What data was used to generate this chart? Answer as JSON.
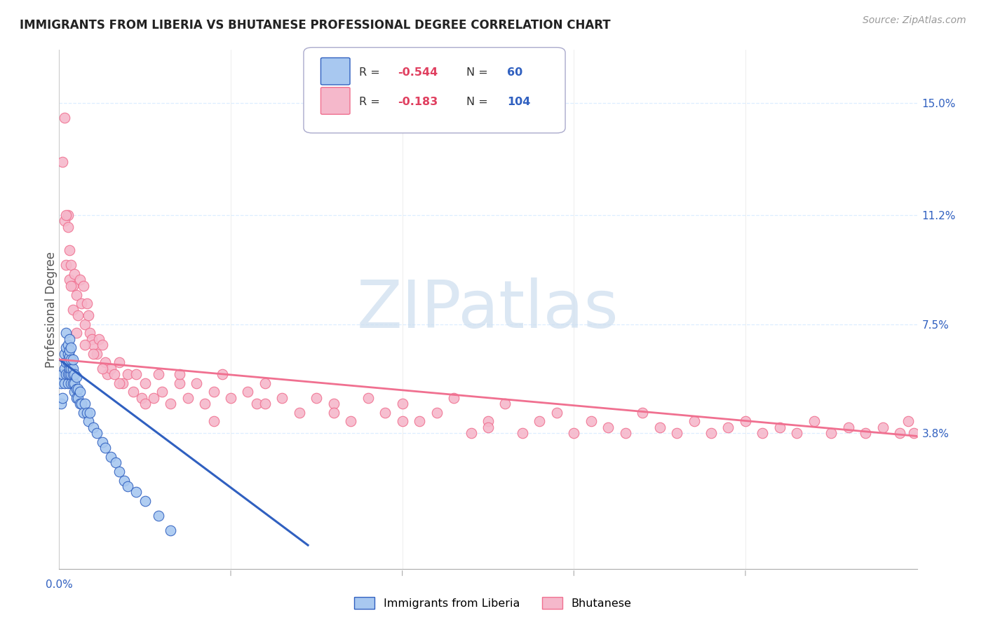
{
  "title": "IMMIGRANTS FROM LIBERIA VS BHUTANESE PROFESSIONAL DEGREE CORRELATION CHART",
  "source": "Source: ZipAtlas.com",
  "ylabel": "Professional Degree",
  "right_yticks": [
    "15.0%",
    "11.2%",
    "7.5%",
    "3.8%"
  ],
  "right_ytick_vals": [
    0.15,
    0.112,
    0.075,
    0.038
  ],
  "xmin": 0.0,
  "xmax": 0.5,
  "ymin": -0.008,
  "ymax": 0.168,
  "color_liberia": "#a8c8f0",
  "color_bhutanese": "#f5b8cb",
  "color_liberia_line": "#3060c0",
  "color_bhutanese_line": "#f07090",
  "watermark_color": "#ccddef",
  "grid_color": "#ddeeff",
  "liberia_x": [
    0.001,
    0.001,
    0.002,
    0.002,
    0.003,
    0.003,
    0.003,
    0.004,
    0.004,
    0.004,
    0.004,
    0.005,
    0.005,
    0.005,
    0.005,
    0.005,
    0.006,
    0.006,
    0.006,
    0.006,
    0.006,
    0.006,
    0.007,
    0.007,
    0.007,
    0.007,
    0.007,
    0.008,
    0.008,
    0.008,
    0.008,
    0.009,
    0.009,
    0.009,
    0.01,
    0.01,
    0.01,
    0.011,
    0.011,
    0.012,
    0.012,
    0.013,
    0.014,
    0.015,
    0.016,
    0.017,
    0.018,
    0.02,
    0.022,
    0.025,
    0.027,
    0.03,
    0.033,
    0.035,
    0.038,
    0.04,
    0.045,
    0.05,
    0.058,
    0.065
  ],
  "liberia_y": [
    0.048,
    0.055,
    0.05,
    0.058,
    0.055,
    0.06,
    0.065,
    0.058,
    0.062,
    0.067,
    0.072,
    0.055,
    0.058,
    0.062,
    0.065,
    0.068,
    0.058,
    0.06,
    0.062,
    0.064,
    0.066,
    0.07,
    0.055,
    0.058,
    0.06,
    0.063,
    0.067,
    0.055,
    0.058,
    0.06,
    0.063,
    0.052,
    0.055,
    0.058,
    0.05,
    0.053,
    0.057,
    0.05,
    0.053,
    0.048,
    0.052,
    0.048,
    0.045,
    0.048,
    0.045,
    0.042,
    0.045,
    0.04,
    0.038,
    0.035,
    0.033,
    0.03,
    0.028,
    0.025,
    0.022,
    0.02,
    0.018,
    0.015,
    0.01,
    0.005
  ],
  "bhutanese_x": [
    0.002,
    0.003,
    0.003,
    0.004,
    0.005,
    0.005,
    0.006,
    0.006,
    0.007,
    0.008,
    0.008,
    0.009,
    0.01,
    0.011,
    0.012,
    0.013,
    0.014,
    0.015,
    0.016,
    0.017,
    0.018,
    0.019,
    0.02,
    0.022,
    0.023,
    0.025,
    0.027,
    0.028,
    0.03,
    0.032,
    0.035,
    0.037,
    0.04,
    0.043,
    0.045,
    0.048,
    0.05,
    0.055,
    0.058,
    0.06,
    0.065,
    0.07,
    0.075,
    0.08,
    0.085,
    0.09,
    0.095,
    0.1,
    0.11,
    0.115,
    0.12,
    0.13,
    0.14,
    0.15,
    0.16,
    0.17,
    0.18,
    0.19,
    0.2,
    0.21,
    0.22,
    0.23,
    0.24,
    0.25,
    0.26,
    0.27,
    0.28,
    0.29,
    0.3,
    0.31,
    0.32,
    0.33,
    0.34,
    0.35,
    0.36,
    0.37,
    0.38,
    0.39,
    0.4,
    0.41,
    0.42,
    0.43,
    0.44,
    0.45,
    0.46,
    0.47,
    0.48,
    0.49,
    0.495,
    0.498,
    0.004,
    0.007,
    0.01,
    0.015,
    0.02,
    0.025,
    0.035,
    0.05,
    0.07,
    0.09,
    0.12,
    0.16,
    0.2,
    0.25
  ],
  "bhutanese_y": [
    0.13,
    0.145,
    0.11,
    0.095,
    0.112,
    0.108,
    0.1,
    0.09,
    0.095,
    0.088,
    0.08,
    0.092,
    0.085,
    0.078,
    0.09,
    0.082,
    0.088,
    0.075,
    0.082,
    0.078,
    0.072,
    0.07,
    0.068,
    0.065,
    0.07,
    0.068,
    0.062,
    0.058,
    0.06,
    0.058,
    0.062,
    0.055,
    0.058,
    0.052,
    0.058,
    0.05,
    0.055,
    0.05,
    0.058,
    0.052,
    0.048,
    0.055,
    0.05,
    0.055,
    0.048,
    0.042,
    0.058,
    0.05,
    0.052,
    0.048,
    0.055,
    0.05,
    0.045,
    0.05,
    0.048,
    0.042,
    0.05,
    0.045,
    0.048,
    0.042,
    0.045,
    0.05,
    0.038,
    0.042,
    0.048,
    0.038,
    0.042,
    0.045,
    0.038,
    0.042,
    0.04,
    0.038,
    0.045,
    0.04,
    0.038,
    0.042,
    0.038,
    0.04,
    0.042,
    0.038,
    0.04,
    0.038,
    0.042,
    0.038,
    0.04,
    0.038,
    0.04,
    0.038,
    0.042,
    0.038,
    0.112,
    0.088,
    0.072,
    0.068,
    0.065,
    0.06,
    0.055,
    0.048,
    0.058,
    0.052,
    0.048,
    0.045,
    0.042,
    0.04
  ]
}
